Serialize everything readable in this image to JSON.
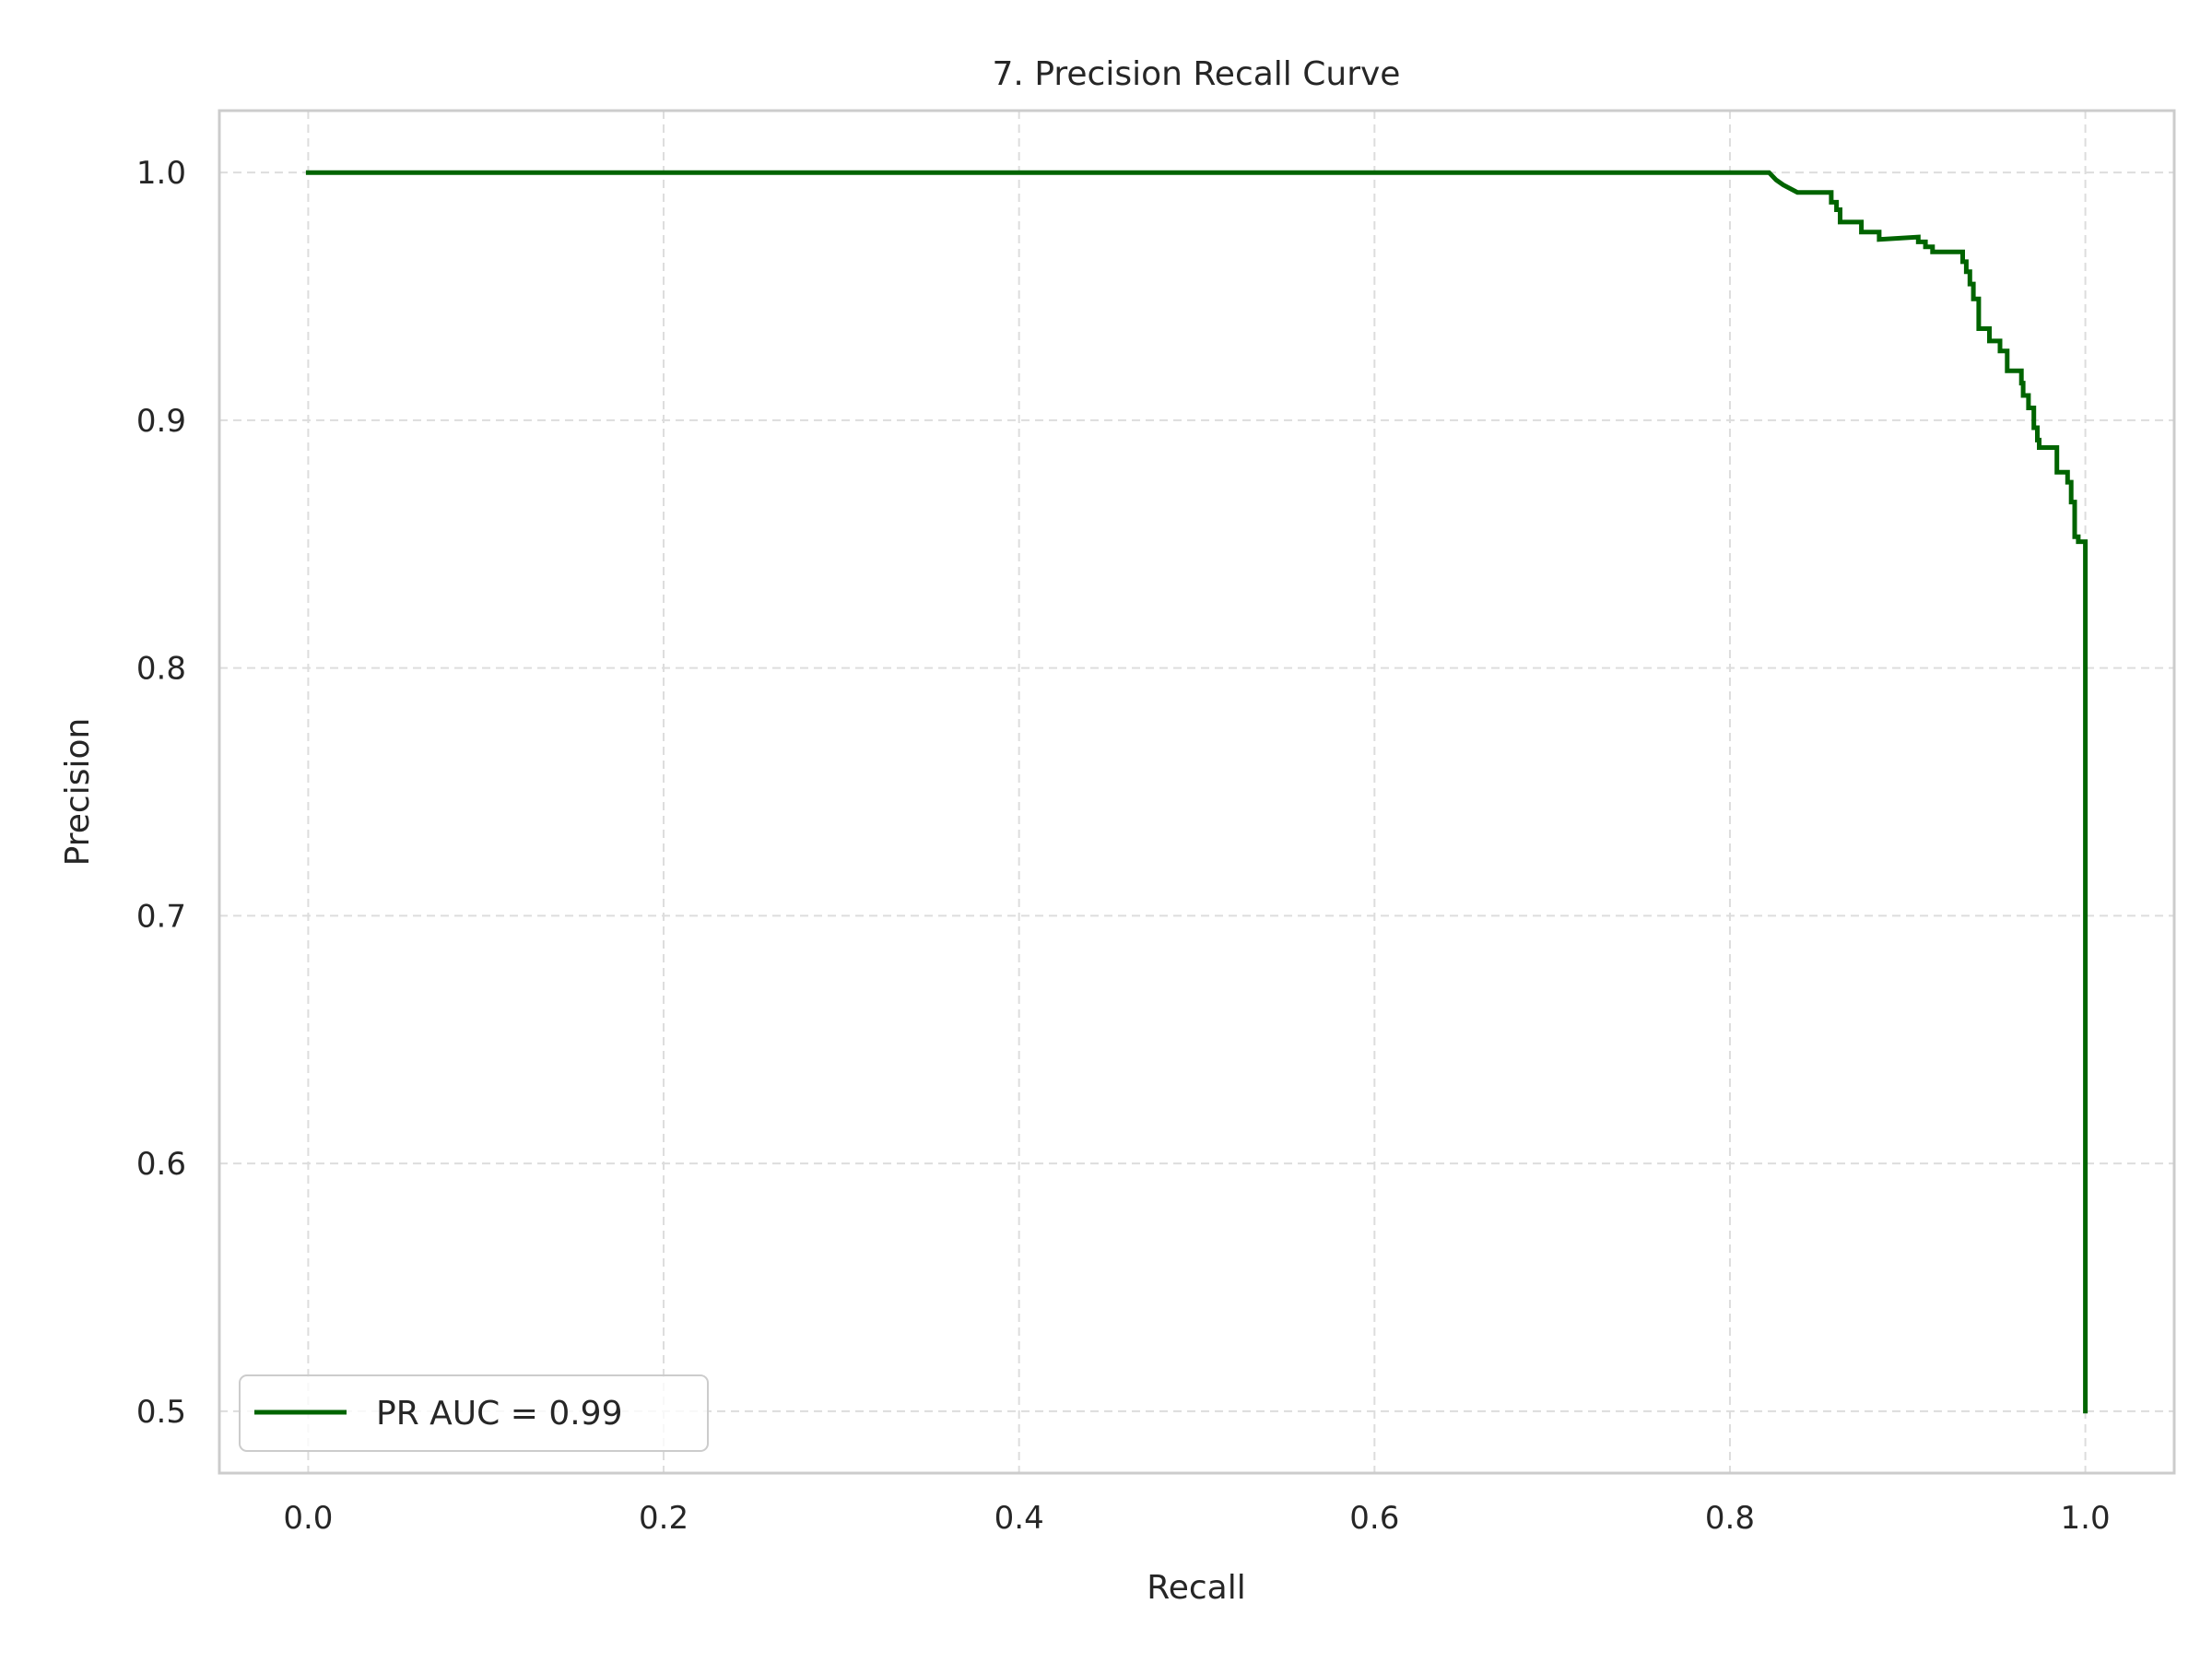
{
  "chart_data": {
    "type": "line",
    "title": "7. Precision Recall Curve",
    "xlabel": "Recall",
    "ylabel": "Precision",
    "xlim": [
      -0.05,
      1.05
    ],
    "ylim": [
      0.475,
      1.025
    ],
    "xticks": [
      0.0,
      0.2,
      0.4,
      0.6,
      0.8,
      1.0
    ],
    "xtick_labels": [
      "0.0",
      "0.2",
      "0.4",
      "0.6",
      "0.8",
      "1.0"
    ],
    "yticks": [
      0.5,
      0.6,
      0.7,
      0.8,
      0.9,
      1.0
    ],
    "ytick_labels": [
      "0.5",
      "0.6",
      "0.7",
      "0.8",
      "0.9",
      "1.0"
    ],
    "grid": true,
    "legend_position": "lower-left",
    "series": [
      {
        "name": "PR AUC = 0.99",
        "color": "#006400",
        "x": [
          0.0,
          0.822,
          0.826,
          0.826,
          0.83,
          0.83,
          0.838,
          0.838,
          0.857,
          0.857,
          0.86,
          0.86,
          0.862,
          0.862,
          0.874,
          0.874,
          0.884,
          0.884,
          0.906,
          0.906,
          0.91,
          0.91,
          0.914,
          0.914,
          0.931,
          0.931,
          0.933,
          0.933,
          0.935,
          0.935,
          0.937,
          0.937,
          0.94,
          0.94,
          0.946,
          0.946,
          0.952,
          0.952,
          0.956,
          0.956,
          0.964,
          0.964,
          0.965,
          0.965,
          0.968,
          0.968,
          0.971,
          0.971,
          0.973,
          0.973,
          0.974,
          0.974,
          0.976,
          0.976,
          0.984,
          0.984,
          0.99,
          0.99,
          0.992,
          0.992,
          0.994,
          0.994,
          0.996,
          0.996,
          1.0,
          1.0
        ],
        "y": [
          1.0,
          1.0,
          0.997,
          0.997,
          0.995,
          0.995,
          0.992,
          0.992,
          0.992,
          0.988,
          0.988,
          0.985,
          0.985,
          0.98,
          0.98,
          0.976,
          0.976,
          0.973,
          0.974,
          0.972,
          0.972,
          0.97,
          0.97,
          0.968,
          0.968,
          0.964,
          0.964,
          0.96,
          0.96,
          0.955,
          0.955,
          0.949,
          0.949,
          0.937,
          0.937,
          0.932,
          0.932,
          0.928,
          0.928,
          0.92,
          0.92,
          0.915,
          0.915,
          0.91,
          0.91,
          0.905,
          0.905,
          0.897,
          0.897,
          0.892,
          0.892,
          0.889,
          0.889,
          0.889,
          0.889,
          0.879,
          0.879,
          0.875,
          0.875,
          0.867,
          0.867,
          0.853,
          0.853,
          0.851,
          0.851,
          0.5
        ]
      }
    ]
  }
}
